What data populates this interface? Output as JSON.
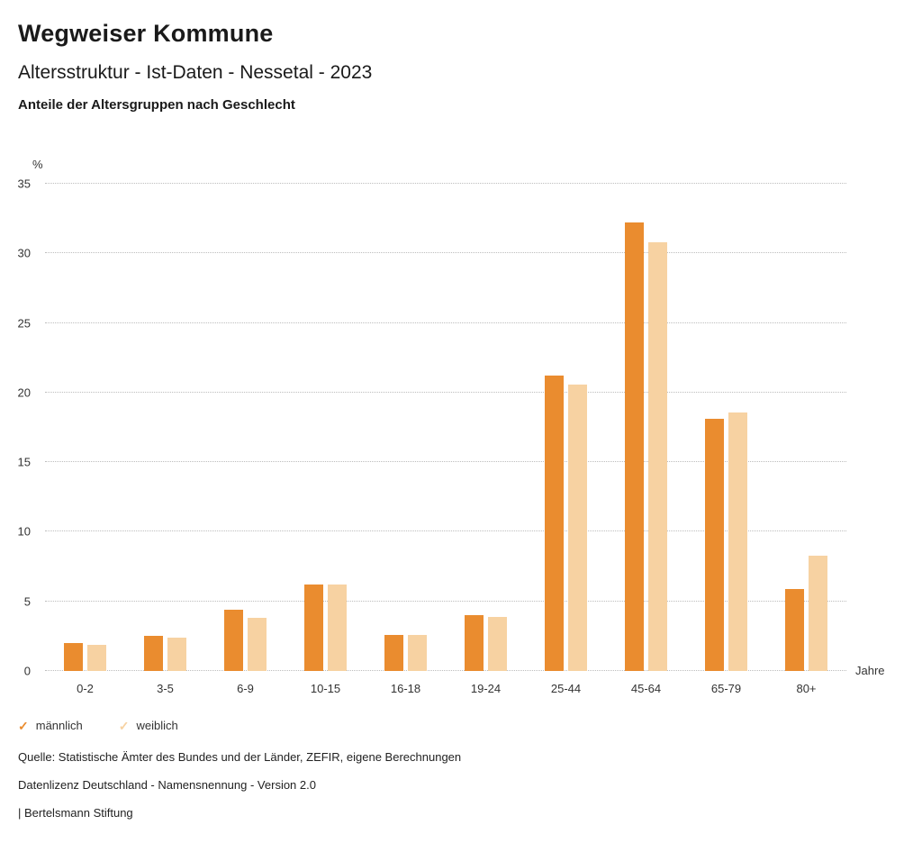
{
  "header": {
    "title": "Wegweiser Kommune",
    "subtitle": "Altersstruktur - Ist-Daten - Nessetal - 2023",
    "heading": "Anteile der Altersgruppen nach Geschlecht"
  },
  "chart_data": {
    "type": "bar",
    "title": "Anteile der Altersgruppen nach Geschlecht",
    "unit_label": "%",
    "xlabel": "Jahre",
    "ylabel": "%",
    "ylim": [
      0,
      35
    ],
    "yticks": [
      0,
      5,
      10,
      15,
      20,
      25,
      30,
      35
    ],
    "grid": "dotted-horizontal",
    "legend_position": "bottom-left",
    "categories": [
      "0-2",
      "3-5",
      "6-9",
      "10-15",
      "16-18",
      "19-24",
      "25-44",
      "45-64",
      "65-79",
      "80+"
    ],
    "series": [
      {
        "name": "männlich",
        "key": "maennlich",
        "color": "#EA8C2F",
        "values": [
          2.0,
          2.5,
          4.4,
          6.2,
          2.6,
          4.0,
          21.2,
          32.2,
          18.1,
          5.9
        ]
      },
      {
        "name": "weiblich",
        "key": "weiblich",
        "color": "#F7D2A2",
        "values": [
          1.9,
          2.4,
          3.8,
          6.2,
          2.6,
          3.9,
          20.6,
          30.8,
          18.6,
          8.3
        ]
      }
    ]
  },
  "legend": {
    "check_glyph": "✓",
    "items": [
      {
        "label": "männlich",
        "key": "maennlich",
        "color": "#EA8C2F"
      },
      {
        "label": "weiblich",
        "key": "weiblich",
        "color": "#F7D2A2"
      }
    ]
  },
  "footer": {
    "lines": [
      "Quelle: Statistische Ämter des Bundes und der Länder, ZEFIR, eigene Berechnungen",
      "Datenlizenz Deutschland - Namensnennung - Version 2.0",
      "| Bertelsmann Stiftung"
    ]
  }
}
